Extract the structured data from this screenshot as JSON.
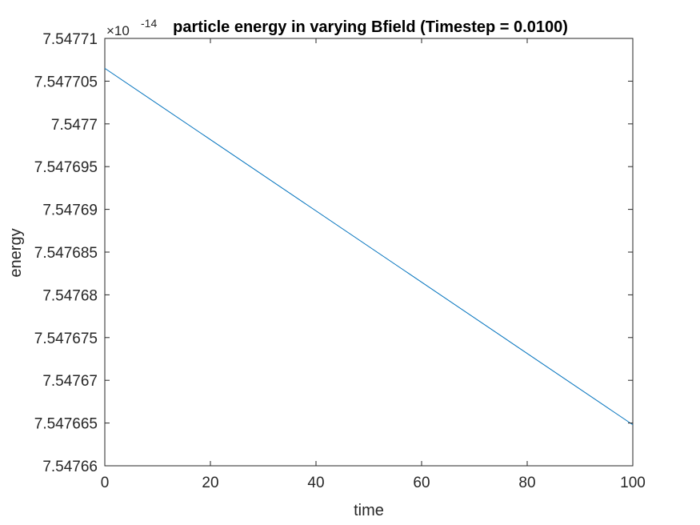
{
  "chart_data": {
    "type": "line",
    "title": "particle energy in varying Bfield (Timestep = 0.0100)",
    "xlabel": "time",
    "ylabel": "energy",
    "y_exponent_label": {
      "base": "×10",
      "exponent": "-14"
    },
    "xlim": [
      0,
      100
    ],
    "ylim": [
      7.54766,
      7.54771
    ],
    "x_ticks": [
      0,
      20,
      40,
      60,
      80,
      100
    ],
    "x_tick_labels": [
      "0",
      "20",
      "40",
      "60",
      "80",
      "100"
    ],
    "y_ticks": [
      7.54766,
      7.547665,
      7.54767,
      7.547675,
      7.54768,
      7.547685,
      7.54769,
      7.547695,
      7.5477,
      7.547705,
      7.54771
    ],
    "y_tick_labels": [
      "7.54766",
      "7.547665",
      "7.54767",
      "7.547675",
      "7.54768",
      "7.547685",
      "7.54769",
      "7.547695",
      "7.5477",
      "7.547705",
      "7.54771"
    ],
    "grid": false,
    "series": [
      {
        "color": "#0072bd",
        "x": [
          0,
          100
        ],
        "y": [
          7.5477065,
          7.5476648
        ]
      }
    ]
  }
}
